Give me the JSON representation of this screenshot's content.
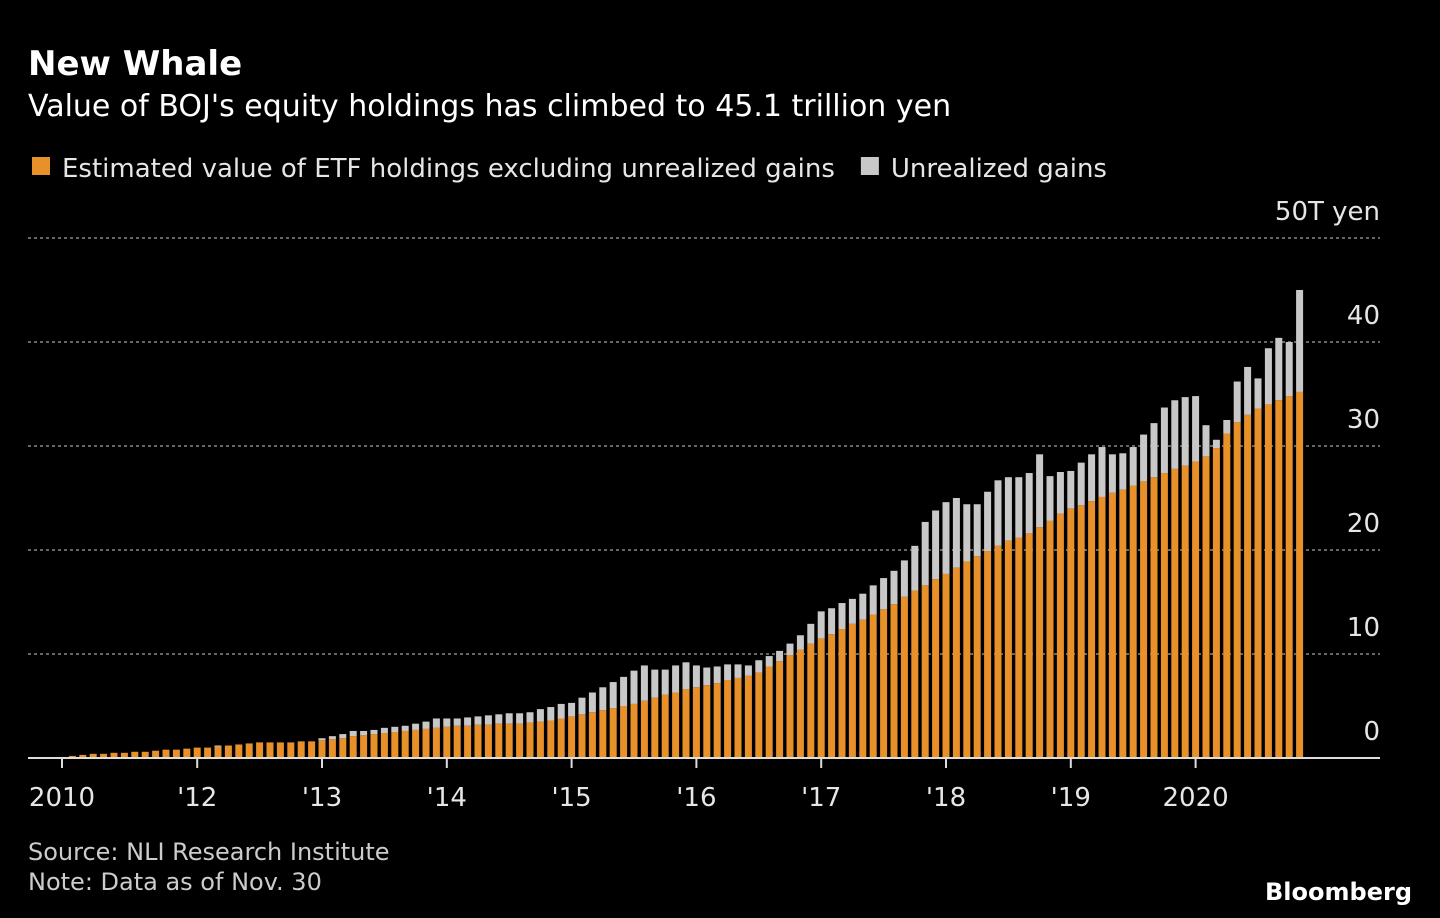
{
  "chart_data": {
    "type": "stacked-bar",
    "title": "New Whale",
    "subtitle": "Value of BOJ's equity holdings has climbed to 45.1 trillion yen",
    "source": "Source: NLI Research Institute",
    "note": "Note: Data as of Nov. 30",
    "logo": "Bloomberg",
    "categories": [
      "2010",
      null,
      null,
      null,
      null,
      null,
      null,
      null,
      null,
      null,
      null,
      null,
      null,
      "'12",
      null,
      null,
      null,
      null,
      null,
      null,
      null,
      null,
      null,
      null,
      null,
      "'13",
      null,
      null,
      null,
      null,
      null,
      null,
      null,
      null,
      null,
      null,
      null,
      "'14",
      null,
      null,
      null,
      null,
      null,
      null,
      null,
      null,
      null,
      null,
      null,
      "'15",
      null,
      null,
      null,
      null,
      null,
      null,
      null,
      null,
      null,
      null,
      null,
      "'16",
      null,
      null,
      null,
      null,
      null,
      null,
      null,
      null,
      null,
      null,
      null,
      "'17",
      null,
      null,
      null,
      null,
      null,
      null,
      null,
      null,
      null,
      null,
      null,
      "'18",
      null,
      null,
      null,
      null,
      null,
      null,
      null,
      null,
      null,
      null,
      null,
      "'19",
      null,
      null,
      null,
      null,
      null,
      null,
      null,
      null,
      null,
      null,
      null,
      "2020",
      null,
      null,
      null,
      null,
      null,
      null,
      null,
      null,
      null,
      null
    ],
    "series": [
      {
        "name": "Estimated value of ETF holdings excluding unrealized gains",
        "color": "#e8902a",
        "values": [
          0.1,
          0.2,
          0.3,
          0.4,
          0.4,
          0.5,
          0.5,
          0.6,
          0.6,
          0.7,
          0.8,
          0.8,
          0.9,
          1.0,
          1.0,
          1.1,
          1.2,
          1.3,
          1.4,
          1.5,
          1.5,
          1.5,
          1.5,
          1.6,
          1.6,
          1.7,
          1.8,
          1.9,
          2.1,
          2.2,
          2.3,
          2.4,
          2.5,
          2.6,
          2.7,
          2.8,
          2.9,
          3.0,
          3.1,
          3.1,
          3.2,
          3.2,
          3.3,
          3.3,
          3.3,
          3.4,
          3.5,
          3.6,
          3.8,
          4.0,
          4.2,
          4.4,
          4.6,
          4.8,
          5.0,
          5.2,
          5.5,
          5.8,
          6.1,
          6.3,
          6.6,
          6.8,
          7.0,
          7.2,
          7.5,
          7.7,
          7.9,
          8.2,
          8.8,
          9.3,
          9.9,
          10.4,
          11.0,
          11.5,
          11.9,
          12.4,
          12.9,
          13.3,
          13.8,
          14.3,
          14.8,
          15.5,
          16.1,
          16.6,
          17.2,
          17.7,
          18.3,
          18.9,
          19.4,
          19.9,
          20.4,
          20.9,
          21.2,
          21.6,
          22.2,
          22.8,
          23.5,
          24.0,
          24.3,
          24.7,
          25.1,
          25.5,
          25.8,
          26.2,
          26.6,
          27.0,
          27.4,
          27.8,
          28.1,
          28.5,
          29.0,
          29.8,
          31.2,
          32.3,
          33.0,
          33.6,
          34.0,
          34.4,
          34.8,
          35.2
        ]
      },
      {
        "name": "Unrealized gains",
        "color": "#c8c8c8",
        "values": [
          0,
          0,
          0,
          0,
          0,
          0,
          0,
          0,
          0,
          0,
          0,
          0,
          0,
          0,
          0,
          0.1,
          0,
          0,
          0,
          0,
          0,
          0,
          0,
          0,
          0,
          0.2,
          0.3,
          0.4,
          0.5,
          0.4,
          0.4,
          0.5,
          0.5,
          0.5,
          0.6,
          0.7,
          0.9,
          0.8,
          0.7,
          0.8,
          0.8,
          0.9,
          0.9,
          1.0,
          1.0,
          1.0,
          1.2,
          1.3,
          1.4,
          1.3,
          1.6,
          1.9,
          2.2,
          2.5,
          2.8,
          3.2,
          3.4,
          2.7,
          2.4,
          2.6,
          2.6,
          2.1,
          1.7,
          1.6,
          1.5,
          1.3,
          1.0,
          1.2,
          1.0,
          1.0,
          1.1,
          1.4,
          1.9,
          2.6,
          2.5,
          2.5,
          2.4,
          2.5,
          2.8,
          3.0,
          3.2,
          3.5,
          4.3,
          6.1,
          6.6,
          6.9,
          6.7,
          5.5,
          5.0,
          5.7,
          6.3,
          6.1,
          5.8,
          5.8,
          7.0,
          4.3,
          4.0,
          3.6,
          4.1,
          4.5,
          4.8,
          3.7,
          3.5,
          3.7,
          4.5,
          5.2,
          6.3,
          6.6,
          6.6,
          6.3,
          3.0,
          0.8,
          1.3,
          3.9,
          4.6,
          2.9,
          5.4,
          6.0,
          5.2,
          9.8
        ]
      }
    ],
    "ylim": [
      0,
      50
    ],
    "yticks": [
      0,
      10,
      20,
      30,
      40,
      {
        "value": 50,
        "label": "50T yen"
      }
    ],
    "grid": true
  }
}
